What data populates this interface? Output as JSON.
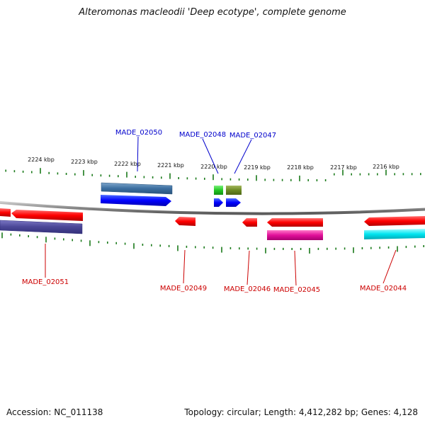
{
  "title": "Alteromonas macleodii 'Deep ecotype', complete genome",
  "footer": {
    "accession": "Accession: NC_011138",
    "summary": "Topology: circular; Length: 4,412,282 bp; Genes: 4,128"
  },
  "scale_labels": [
    "2224 kbp",
    "2223 kbp",
    "2222 kbp",
    "2221 kbp",
    "2220 kbp",
    "2219 kbp",
    "2218 kbp",
    "2217 kbp",
    "2216 kbp"
  ],
  "gene_labels_top": [
    {
      "name": "MADE_02050",
      "color": "#0000cc"
    },
    {
      "name": "MADE_02048",
      "color": "#0000cc"
    },
    {
      "name": "MADE_02047",
      "color": "#0000cc"
    }
  ],
  "gene_labels_bottom": [
    {
      "name": "MADE_02051",
      "color": "#cc0000"
    },
    {
      "name": "MADE_02049",
      "color": "#cc0000"
    },
    {
      "name": "MADE_02046",
      "color": "#cc0000"
    },
    {
      "name": "MADE_02045",
      "color": "#cc0000"
    },
    {
      "name": "MADE_02044",
      "color": "#cc0000"
    }
  ],
  "colors": {
    "forward_gene": "#0000ff",
    "reverse_gene": "#ff0000",
    "tick": "#1a7a1a",
    "backbone": "#8a8a8a"
  }
}
